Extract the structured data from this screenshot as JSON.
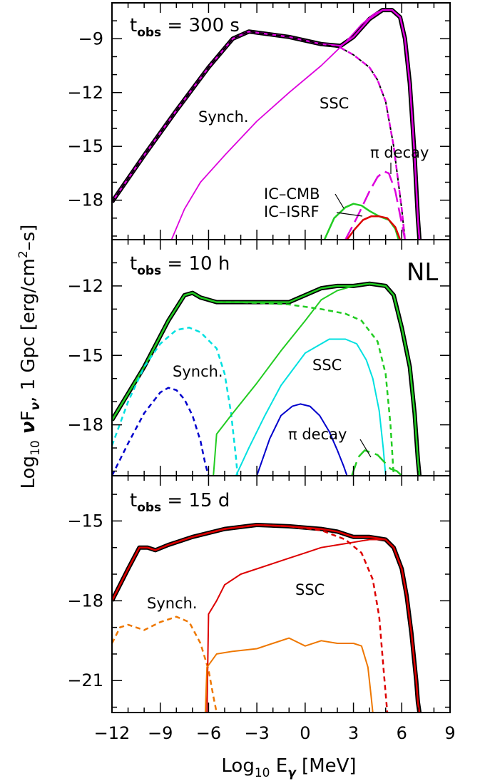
{
  "chart_data": {
    "type": "line",
    "xlabel": "Log10 Eγ [MeV]",
    "ylabel": "Log10 νFν, 1 Gpc [erg/cm²–s]",
    "x_ticks": [
      -12,
      -9,
      -6,
      -3,
      0,
      3,
      6,
      9
    ],
    "xlim": [
      -12,
      9
    ],
    "corner_label": "NL",
    "panels": [
      {
        "label_main": "t",
        "label_sub": "obs",
        "label_rest": " = 300 s",
        "ylim": [
          -20.2,
          -7.0
        ],
        "y_ticks": [
          -9,
          -12,
          -15,
          -18
        ],
        "annotations": [
          "Synch.",
          "SSC",
          "π decay",
          "IC–CMB",
          "IC–ISRF"
        ],
        "series": [
          {
            "color": "#000000",
            "dash": "solid",
            "width": 6,
            "x": [
              -12,
              -10,
              -8,
              -6,
              -4.5,
              -3.5,
              -1,
              1,
              2.2,
              3,
              4,
              4.8,
              5.4,
              5.9,
              6.2,
              6.5,
              6.8,
              7.0,
              7.1
            ],
            "y": [
              -18.1,
              -15.5,
              -13.0,
              -10.6,
              -9.0,
              -8.6,
              -8.9,
              -9.3,
              -9.4,
              -8.9,
              -7.9,
              -7.4,
              -7.4,
              -7.8,
              -9.0,
              -11.5,
              -15.5,
              -19.0,
              -20.2
            ]
          },
          {
            "color": "#dd00dd",
            "dash": "solid",
            "width": 2.5,
            "x": [
              -12,
              -10,
              -8,
              -6,
              -4.5,
              -3.5,
              -1,
              1,
              2.2,
              3,
              4,
              4.8,
              5.4,
              5.9,
              6.2,
              6.5,
              6.8,
              7.0,
              7.1
            ],
            "y": [
              -18.1,
              -15.5,
              -13.0,
              -10.6,
              -9.0,
              -8.6,
              -8.9,
              -9.3,
              -9.4,
              -8.9,
              -7.9,
              -7.4,
              -7.4,
              -7.8,
              -9.0,
              -11.5,
              -15.5,
              -19.0,
              -20.2
            ]
          },
          {
            "color": "#000000",
            "dash": "dash",
            "width": 2,
            "x": [
              -12,
              -10,
              -8,
              -6,
              -4.5,
              -3.5,
              -1,
              1,
              2.2,
              3,
              4,
              4.5,
              5,
              5.5,
              6,
              6.2
            ],
            "y": [
              -18.1,
              -15.5,
              -13.0,
              -10.6,
              -9.0,
              -8.6,
              -8.9,
              -9.3,
              -9.5,
              -9.9,
              -10.6,
              -11.3,
              -12.5,
              -15.0,
              -18.5,
              -20.2
            ]
          },
          {
            "color": "#dd00dd",
            "dash": "dash",
            "width": 2.5,
            "x": [
              2.2,
              3,
              4,
              4.5,
              5,
              5.5,
              6,
              6.2
            ],
            "y": [
              -9.5,
              -9.9,
              -10.6,
              -11.3,
              -12.5,
              -15.0,
              -18.5,
              -20.2
            ]
          },
          {
            "color": "#dd00dd",
            "dash": "solid",
            "width": 1.8,
            "x": [
              -8.3,
              -7.5,
              -6.5,
              -5,
              -3,
              -1,
              1,
              2.5,
              3.5,
              4.3,
              4.8,
              5.4,
              5.9,
              6.2,
              6.5,
              6.8,
              7.0,
              7.1
            ],
            "y": [
              -20.2,
              -18.5,
              -17.0,
              -15.5,
              -13.6,
              -12.0,
              -10.5,
              -9.2,
              -8.2,
              -7.6,
              -7.4,
              -7.4,
              -7.8,
              -9.0,
              -11.5,
              -15.5,
              -19.0,
              -20.2
            ]
          },
          {
            "color": "#dd00dd",
            "dash": "longdash",
            "width": 2.5,
            "x": [
              2.5,
              3.2,
              4.0,
              4.5,
              4.9,
              5.2,
              5.6,
              6.0,
              6.2
            ],
            "y": [
              -20.2,
              -19.0,
              -17.5,
              -16.7,
              -16.4,
              -16.5,
              -17.5,
              -19.3,
              -20.2
            ]
          },
          {
            "color": "#22cc22",
            "dash": "solid",
            "width": 2.5,
            "x": [
              1.2,
              1.8,
              2.5,
              3.0,
              3.5,
              4.0,
              4.6,
              5.2,
              5.6,
              5.8
            ],
            "y": [
              -20.2,
              -19.0,
              -18.4,
              -18.2,
              -18.3,
              -18.6,
              -18.9,
              -19.1,
              -19.6,
              -20.2
            ]
          },
          {
            "color": "#dd0000",
            "dash": "solid",
            "width": 2.5,
            "x": [
              2.6,
              3.1,
              3.6,
              4.1,
              4.6,
              5.1,
              5.6,
              5.9
            ],
            "y": [
              -20.2,
              -19.6,
              -19.1,
              -18.9,
              -18.9,
              -19.0,
              -19.5,
              -20.2
            ]
          }
        ]
      },
      {
        "label_main": "t",
        "label_sub": "obs",
        "label_rest": " = 10 h",
        "ylim": [
          -20.2,
          -10.0
        ],
        "y_ticks": [
          -12,
          -15,
          -18
        ],
        "annotations": [
          "Synch.",
          "SSC",
          "π decay"
        ],
        "series": [
          {
            "color": "#000000",
            "dash": "solid",
            "width": 6,
            "x": [
              -12,
              -10,
              -8.5,
              -7.5,
              -7.0,
              -6.5,
              -5.5,
              -4,
              -1,
              0,
              1,
              2,
              3,
              4,
              5,
              5.5,
              6.0,
              6.5,
              6.8,
              7.0,
              7.1
            ],
            "y": [
              -17.8,
              -15.5,
              -13.5,
              -12.4,
              -12.3,
              -12.5,
              -12.7,
              -12.7,
              -12.7,
              -12.4,
              -12.1,
              -12.0,
              -12.0,
              -11.9,
              -12.0,
              -12.4,
              -13.8,
              -15.5,
              -17.5,
              -19.5,
              -20.2
            ]
          },
          {
            "color": "#22cc22",
            "dash": "solid",
            "width": 2.5,
            "x": [
              -12,
              -10,
              -8.5,
              -7.5,
              -7.0,
              -6.5,
              -5.5,
              -4,
              -1,
              0,
              1,
              2,
              3,
              4,
              5,
              5.5,
              6.0,
              6.5,
              6.8,
              7.0,
              7.1
            ],
            "y": [
              -17.8,
              -15.5,
              -13.5,
              -12.4,
              -12.3,
              -12.5,
              -12.7,
              -12.7,
              -12.7,
              -12.4,
              -12.1,
              -12.0,
              -12.0,
              -11.9,
              -12.0,
              -12.4,
              -13.8,
              -15.5,
              -17.5,
              -19.5,
              -20.2
            ]
          },
          {
            "color": "#22cc22",
            "dash": "dash",
            "width": 2.5,
            "x": [
              -12,
              -10,
              -8.5,
              -7.5,
              -7.0,
              -6.5,
              -5.5,
              -4,
              -1,
              1,
              2.5,
              3.5,
              4.5,
              5.0,
              5.3,
              5.5
            ],
            "y": [
              -17.8,
              -15.5,
              -13.5,
              -12.4,
              -12.3,
              -12.5,
              -12.7,
              -12.7,
              -12.8,
              -13.0,
              -13.2,
              -13.5,
              -14.4,
              -15.8,
              -18.0,
              -20.2
            ]
          },
          {
            "color": "#00e0e0",
            "dash": "dash",
            "width": 2.5,
            "x": [
              -12,
              -11,
              -10,
              -9,
              -8,
              -7.2,
              -6.5,
              -5.5,
              -5.0,
              -4.6,
              -4.3,
              -4.2
            ],
            "y": [
              -18.9,
              -17.0,
              -15.5,
              -14.5,
              -13.9,
              -13.8,
              -14.0,
              -14.7,
              -15.8,
              -17.5,
              -19.4,
              -20.2
            ]
          },
          {
            "color": "#0000cc",
            "dash": "dash",
            "width": 2.5,
            "x": [
              -12,
              -11,
              -10,
              -9,
              -8.5,
              -8,
              -7.5,
              -7,
              -6.5,
              -6.2,
              -6.0
            ],
            "y": [
              -20.2,
              -18.8,
              -17.5,
              -16.6,
              -16.4,
              -16.5,
              -16.9,
              -17.6,
              -18.7,
              -19.7,
              -20.2
            ]
          },
          {
            "color": "#22cc22",
            "dash": "solid",
            "width": 2,
            "x": [
              -5.7,
              -5.5,
              -4.5,
              -3,
              -1.5,
              0,
              1,
              2,
              3,
              4,
              5,
              5.5,
              6.0,
              6.5,
              6.8,
              7.0,
              7.1
            ],
            "y": [
              -20.2,
              -18.4,
              -17.5,
              -16.2,
              -14.8,
              -13.5,
              -12.6,
              -12.2,
              -12.0,
              -11.9,
              -12.0,
              -12.4,
              -13.8,
              -15.5,
              -17.5,
              -19.5,
              -20.2
            ]
          },
          {
            "color": "#00e0e0",
            "dash": "solid",
            "width": 2,
            "x": [
              -4.3,
              -3.5,
              -2.5,
              -1.5,
              0,
              1.5,
              2.5,
              3.2,
              3.8,
              4.2,
              4.6,
              4.85,
              5.0
            ],
            "y": [
              -20.2,
              -19.0,
              -17.6,
              -16.3,
              -14.9,
              -14.3,
              -14.3,
              -14.5,
              -15.2,
              -16.0,
              -17.4,
              -19.0,
              -20.2
            ]
          },
          {
            "color": "#0000cc",
            "dash": "solid",
            "width": 2,
            "x": [
              -3.0,
              -2.2,
              -1.5,
              -0.8,
              -0.3,
              0.3,
              0.9,
              1.5,
              2.0,
              2.4,
              2.6
            ],
            "y": [
              -20.2,
              -18.6,
              -17.6,
              -17.2,
              -17.1,
              -17.2,
              -17.6,
              -18.3,
              -19.1,
              -19.8,
              -20.2
            ]
          },
          {
            "color": "#22cc22",
            "dash": "longdash",
            "width": 2.5,
            "x": [
              2.9,
              3.3,
              3.7,
              4.1,
              4.5,
              4.9,
              5.3,
              5.7,
              6.0
            ],
            "y": [
              -20.2,
              -19.4,
              -19.1,
              -19.2,
              -19.3,
              -19.6,
              -19.9,
              -20.0,
              -20.2
            ]
          }
        ]
      },
      {
        "label_main": "t",
        "label_sub": "obs",
        "label_rest": " = 15 d",
        "ylim": [
          -22.2,
          -13.3
        ],
        "y_ticks": [
          -15,
          -18,
          -21
        ],
        "annotations": [
          "Synch.",
          "SSC"
        ],
        "series": [
          {
            "color": "#000000",
            "dash": "solid",
            "width": 6,
            "x": [
              -12,
              -11,
              -10.3,
              -9.8,
              -9.3,
              -8.5,
              -7,
              -5,
              -3,
              -1,
              1,
              2,
              3,
              4,
              5,
              5.5,
              6.0,
              6.3,
              6.6,
              6.9,
              7.0,
              7.1
            ],
            "y": [
              -18.0,
              -16.8,
              -16.0,
              -16.0,
              -16.1,
              -15.9,
              -15.6,
              -15.3,
              -15.15,
              -15.2,
              -15.3,
              -15.4,
              -15.6,
              -15.6,
              -15.7,
              -16.0,
              -16.8,
              -17.8,
              -19.2,
              -21.0,
              -21.8,
              -22.2
            ]
          },
          {
            "color": "#dd0000",
            "dash": "solid",
            "width": 2.5,
            "x": [
              -12,
              -11,
              -10.3,
              -9.8,
              -9.3,
              -8.5,
              -7,
              -5,
              -3,
              -1,
              1,
              2,
              3,
              4,
              5,
              5.5,
              6.0,
              6.3,
              6.6,
              6.9,
              7.0,
              7.1
            ],
            "y": [
              -18.0,
              -16.8,
              -16.0,
              -16.0,
              -16.1,
              -15.9,
              -15.6,
              -15.3,
              -15.15,
              -15.2,
              -15.3,
              -15.4,
              -15.6,
              -15.6,
              -15.7,
              -16.0,
              -16.8,
              -17.8,
              -19.2,
              -21.0,
              -21.8,
              -22.2
            ]
          },
          {
            "color": "#dd0000",
            "dash": "dash",
            "width": 2.5,
            "x": [
              -12,
              -11,
              -10.3,
              -9.8,
              -9.3,
              -8.5,
              -7,
              -5,
              -3,
              -1,
              1,
              2.5,
              3.5,
              4.2,
              4.6,
              4.9,
              5.1
            ],
            "y": [
              -18.0,
              -16.8,
              -16.0,
              -16.0,
              -16.1,
              -15.9,
              -15.6,
              -15.3,
              -15.15,
              -15.2,
              -15.35,
              -15.7,
              -16.2,
              -17.2,
              -18.6,
              -20.8,
              -22.2
            ]
          },
          {
            "color": "#ee7700",
            "dash": "dash",
            "width": 2.5,
            "x": [
              -12,
              -11.5,
              -11,
              -10,
              -9,
              -8,
              -7.2,
              -6.5,
              -6.0,
              -5.7,
              -5.5
            ],
            "y": [
              -19.6,
              -19.0,
              -18.9,
              -19.1,
              -18.8,
              -18.6,
              -18.8,
              -19.6,
              -20.6,
              -21.6,
              -22.2
            ]
          },
          {
            "color": "#dd0000",
            "dash": "solid",
            "width": 2,
            "x": [
              -6.1,
              -6.0,
              -5.5,
              -5,
              -4,
              -2,
              -1,
              0,
              1,
              2,
              3,
              4,
              5,
              5.5,
              6.0,
              6.3,
              6.6,
              6.9,
              7.0,
              7.1
            ],
            "y": [
              -22.2,
              -18.5,
              -18.0,
              -17.4,
              -17.0,
              -16.6,
              -16.4,
              -16.2,
              -16.0,
              -15.9,
              -15.8,
              -15.7,
              -15.7,
              -16.0,
              -16.8,
              -17.8,
              -19.2,
              -21.0,
              -21.8,
              -22.2
            ]
          },
          {
            "color": "#ee7700",
            "dash": "solid",
            "width": 2,
            "x": [
              -6.2,
              -6.1,
              -5.5,
              -4.5,
              -3,
              -2,
              -1,
              0,
              1,
              2,
              3,
              3.5,
              3.9,
              4.1,
              4.2
            ],
            "y": [
              -22.2,
              -20.5,
              -20.0,
              -19.9,
              -19.8,
              -19.6,
              -19.4,
              -19.7,
              -19.5,
              -19.6,
              -19.6,
              -19.7,
              -20.5,
              -21.6,
              -22.2
            ]
          }
        ]
      }
    ]
  }
}
